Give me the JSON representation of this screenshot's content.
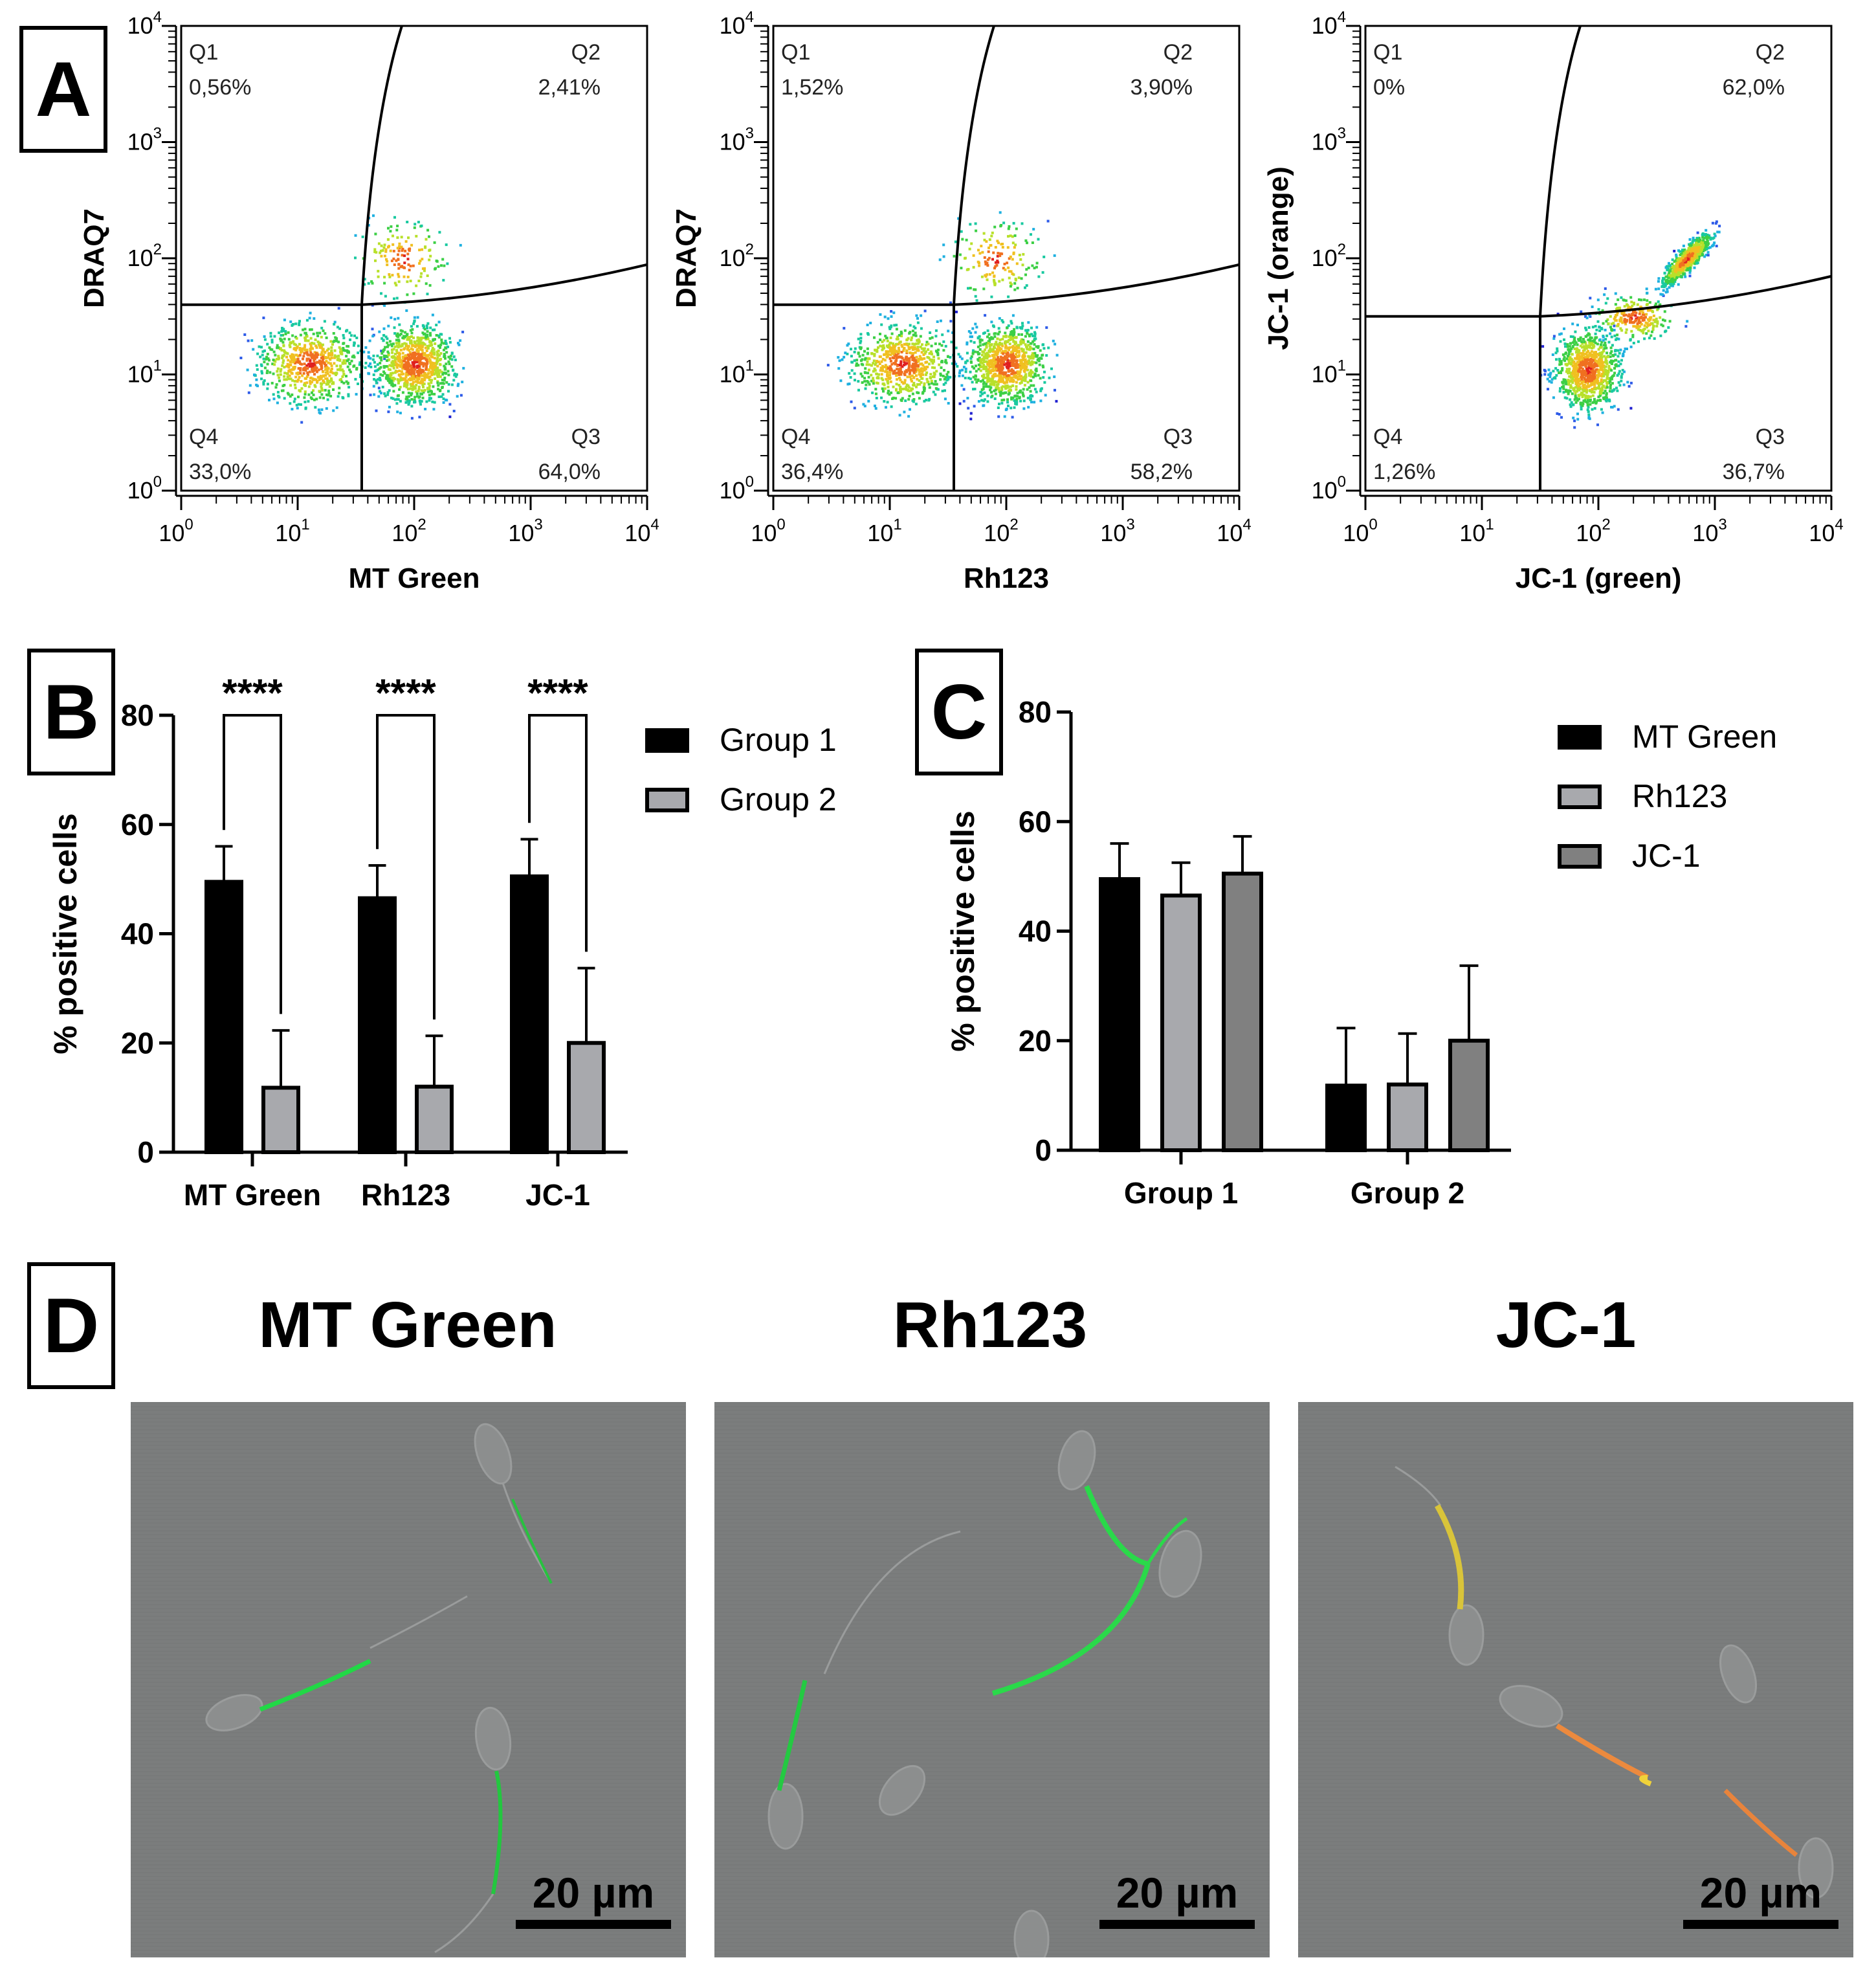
{
  "panels": {
    "A": "A",
    "B": "B",
    "C": "C",
    "D": "D"
  },
  "colors": {
    "group1": "#000000",
    "group2": "#a8a9ad",
    "jc1": "#808080",
    "micro_bg": "#7b7d7d"
  },
  "panel_a": [
    {
      "xlabel": "MT Green",
      "ylabel": "DRAQ7",
      "q1": {
        "name": "Q1",
        "pct": "0,56%"
      },
      "q2": {
        "name": "Q2",
        "pct": "2,41%"
      },
      "q3": {
        "name": "Q3",
        "pct": "64,0%"
      },
      "q4": {
        "name": "Q4",
        "pct": "33,0%"
      },
      "gate_x": 1.55,
      "gate_y": 1.6
    },
    {
      "xlabel": "Rh123",
      "ylabel": "DRAQ7",
      "q1": {
        "name": "Q1",
        "pct": "1,52%"
      },
      "q2": {
        "name": "Q2",
        "pct": "3,90%"
      },
      "q3": {
        "name": "Q3",
        "pct": "58,2%"
      },
      "q4": {
        "name": "Q4",
        "pct": "36,4%"
      },
      "gate_x": 1.55,
      "gate_y": 1.6
    },
    {
      "xlabel": "JC-1 (green)",
      "ylabel": "JC-1 (orange)",
      "q1": {
        "name": "Q1",
        "pct": "0%"
      },
      "q2": {
        "name": "Q2",
        "pct": "62,0%"
      },
      "q3": {
        "name": "Q3",
        "pct": "36,7%"
      },
      "q4": {
        "name": "Q4",
        "pct": "1,26%"
      },
      "gate_x": 1.5,
      "gate_y": 1.5
    }
  ],
  "log_ticks": [
    "10^0",
    "10^1",
    "10^2",
    "10^3",
    "10^4"
  ],
  "chart_data": [
    {
      "type": "bar",
      "panel": "B",
      "categories": [
        "MT Green",
        "Rh123",
        "JC-1"
      ],
      "series": [
        {
          "name": "Group 1",
          "values": [
            49.5,
            46.5,
            50.5
          ],
          "errors": [
            6.5,
            6,
            6.8
          ]
        },
        {
          "name": "Group 2",
          "values": [
            11.8,
            12,
            20
          ],
          "errors": [
            10.5,
            9.3,
            13.7
          ]
        }
      ],
      "significance": [
        "****",
        "****",
        "****"
      ],
      "ylabel": "% positive cells",
      "ylim": [
        0,
        80
      ],
      "yticks": [
        0,
        20,
        40,
        60,
        80
      ],
      "legend": "top-right"
    },
    {
      "type": "bar",
      "panel": "C",
      "categories": [
        "Group 1",
        "Group 2"
      ],
      "series": [
        {
          "name": "MT Green",
          "values": [
            49.5,
            11.8
          ],
          "errors": [
            6.5,
            10.5
          ]
        },
        {
          "name": "Rh123",
          "values": [
            46.5,
            12
          ],
          "errors": [
            6,
            9.3
          ]
        },
        {
          "name": "JC-1",
          "values": [
            50.5,
            20
          ],
          "errors": [
            6.8,
            13.7
          ]
        }
      ],
      "ylabel": "% positive cells",
      "ylim": [
        0,
        80
      ],
      "yticks": [
        0,
        20,
        40,
        60,
        80
      ],
      "legend": "top-right"
    }
  ],
  "panel_d": {
    "titles": [
      "MT Green",
      "Rh123",
      "JC-1"
    ],
    "scale_label": "20 µm"
  }
}
